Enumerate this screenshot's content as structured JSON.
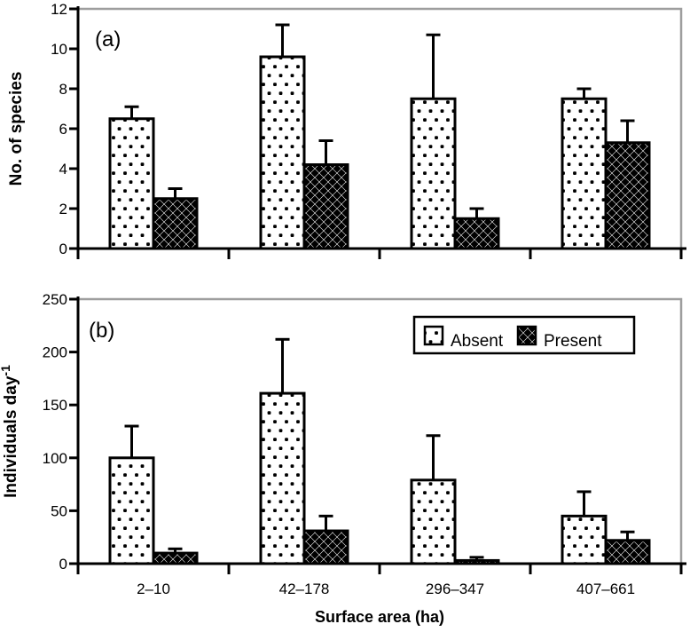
{
  "colors": {
    "ink": "#000000",
    "frame": "#9e9e9e",
    "background": "#ffffff"
  },
  "legend": {
    "items": [
      {
        "label": "Absent",
        "pattern": "dots"
      },
      {
        "label": "Present",
        "pattern": "diamonds"
      }
    ]
  },
  "chart_data": [
    {
      "panel": "a",
      "type": "bar",
      "title": "(a)",
      "categories": [
        "2–10",
        "42–178",
        "296–347",
        "407–661"
      ],
      "series": [
        {
          "name": "Absent",
          "pattern": "dots",
          "values": [
            6.5,
            9.6,
            7.5,
            7.5
          ],
          "errors": [
            0.6,
            1.6,
            3.2,
            0.5
          ]
        },
        {
          "name": "Present",
          "pattern": "diamonds",
          "values": [
            2.5,
            4.2,
            1.5,
            5.3
          ],
          "errors": [
            0.5,
            1.2,
            0.5,
            1.1
          ]
        }
      ],
      "xlabel": "",
      "ylabel": "No. of species",
      "ylim": [
        0,
        12
      ],
      "yticks": [
        0,
        2,
        4,
        6,
        8,
        10,
        12
      ],
      "grid": false,
      "legend": false,
      "error_bars": "upper"
    },
    {
      "panel": "b",
      "type": "bar",
      "title": "(b)",
      "categories": [
        "2–10",
        "42–178",
        "296–347",
        "407–661"
      ],
      "series": [
        {
          "name": "Absent",
          "pattern": "dots",
          "values": [
            100,
            161,
            79,
            45
          ],
          "errors": [
            30,
            51,
            42,
            23
          ]
        },
        {
          "name": "Present",
          "pattern": "diamonds",
          "values": [
            10,
            31,
            3,
            22
          ],
          "errors": [
            4,
            14,
            3,
            8
          ]
        }
      ],
      "xlabel": "Surface area (ha)",
      "ylabel": "Individuals day⁻¹",
      "ylabel_base": "Individuals day",
      "ylabel_sup": "-1",
      "ylim": [
        0,
        250
      ],
      "yticks": [
        0,
        50,
        100,
        150,
        200,
        250
      ],
      "grid": false,
      "legend": true,
      "legend_position": "top-right-inside",
      "error_bars": "upper"
    }
  ]
}
